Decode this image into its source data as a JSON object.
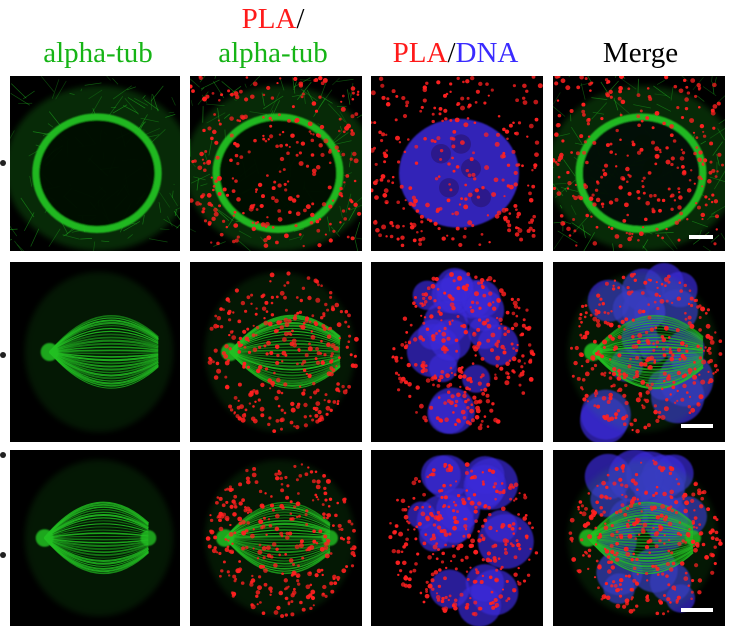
{
  "headers": [
    {
      "parts": [
        {
          "text": "alpha-tub",
          "color": "#16b416"
        }
      ]
    },
    {
      "line1": [
        {
          "text": "PLA",
          "color": "#ff1a1a"
        },
        {
          "text": "/",
          "color": "#000000"
        }
      ],
      "line2": [
        {
          "text": "alpha-tub",
          "color": "#16b416"
        }
      ]
    },
    {
      "parts": [
        {
          "text": "PLA",
          "color": "#ff1a1a"
        },
        {
          "text": "/",
          "color": "#000000"
        },
        {
          "text": "DNA",
          "color": "#3a2bff"
        }
      ]
    },
    {
      "parts": [
        {
          "text": "Merge",
          "color": "#000000"
        }
      ]
    }
  ],
  "rows": [
    {
      "stage": "interphase",
      "columns": [
        "alpha-tub",
        "PLA/alpha-tub",
        "PLA/DNA",
        "Merge"
      ],
      "scale_bar_in": "Merge"
    },
    {
      "stage": "mitosis-spindle",
      "columns": [
        "alpha-tub",
        "PLA/alpha-tub",
        "PLA/DNA",
        "Merge"
      ],
      "scale_bar_in": "Merge"
    },
    {
      "stage": "mitosis-spindle-2",
      "columns": [
        "alpha-tub",
        "PLA/alpha-tub",
        "PLA/DNA",
        "Merge"
      ],
      "scale_bar_in": "Merge"
    }
  ],
  "colors": {
    "tubulin": "#22c022",
    "pla": "#ff2020",
    "dna": "#3b2ad8",
    "background": "#000000"
  }
}
